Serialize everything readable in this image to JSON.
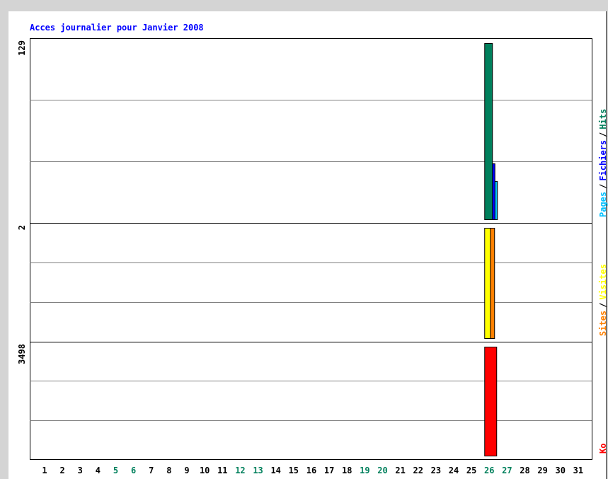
{
  "chart_data": {
    "type": "bar",
    "title": "Acces journalier pour Janvier 2008",
    "categories": [
      "1",
      "2",
      "3",
      "4",
      "5",
      "6",
      "7",
      "8",
      "9",
      "10",
      "11",
      "12",
      "13",
      "14",
      "15",
      "16",
      "17",
      "18",
      "19",
      "20",
      "21",
      "22",
      "23",
      "24",
      "25",
      "26",
      "27",
      "28",
      "29",
      "30",
      "31"
    ],
    "category_colors": [
      "#000000",
      "#000000",
      "#000000",
      "#000000",
      "#00805c",
      "#00805c",
      "#000000",
      "#000000",
      "#000000",
      "#000000",
      "#000000",
      "#00805c",
      "#00805c",
      "#000000",
      "#000000",
      "#000000",
      "#000000",
      "#000000",
      "#00805c",
      "#00805c",
      "#000000",
      "#000000",
      "#000000",
      "#000000",
      "#000000",
      "#00805c",
      "#00805c",
      "#000000",
      "#000000",
      "#000000",
      "#000000"
    ],
    "legend_separator": "/",
    "panels": [
      {
        "ylim": [
          0,
          129
        ],
        "yticks": [
          129
        ],
        "series": [
          {
            "name": "Pages",
            "color": "#00c0ff",
            "values": [
              0,
              0,
              0,
              0,
              0,
              0,
              0,
              0,
              0,
              0,
              0,
              0,
              0,
              0,
              0,
              0,
              0,
              0,
              0,
              0,
              0,
              0,
              0,
              0,
              0,
              28,
              0,
              0,
              0,
              0,
              0
            ]
          },
          {
            "name": "Fichiers",
            "color": "#0000ff",
            "values": [
              0,
              0,
              0,
              0,
              0,
              0,
              0,
              0,
              0,
              0,
              0,
              0,
              0,
              0,
              0,
              0,
              0,
              0,
              0,
              0,
              0,
              0,
              0,
              0,
              0,
              41,
              0,
              0,
              0,
              0,
              0
            ]
          },
          {
            "name": "Hits",
            "color": "#00805c",
            "values": [
              0,
              0,
              0,
              0,
              0,
              0,
              0,
              0,
              0,
              0,
              0,
              0,
              0,
              0,
              0,
              0,
              0,
              0,
              0,
              0,
              0,
              0,
              0,
              0,
              0,
              129,
              0,
              0,
              0,
              0,
              0
            ]
          }
        ]
      },
      {
        "ylim": [
          0,
          2
        ],
        "yticks": [
          2
        ],
        "series": [
          {
            "name": "Sites",
            "color": "#ff8000",
            "values": [
              0,
              0,
              0,
              0,
              0,
              0,
              0,
              0,
              0,
              0,
              0,
              0,
              0,
              0,
              0,
              0,
              0,
              0,
              0,
              0,
              0,
              0,
              0,
              0,
              0,
              2,
              0,
              0,
              0,
              0,
              0
            ]
          },
          {
            "name": "Visites",
            "color": "#ffff00",
            "values": [
              0,
              0,
              0,
              0,
              0,
              0,
              0,
              0,
              0,
              0,
              0,
              0,
              0,
              0,
              0,
              0,
              0,
              0,
              0,
              0,
              0,
              0,
              0,
              0,
              0,
              2,
              0,
              0,
              0,
              0,
              0
            ]
          }
        ]
      },
      {
        "ylim": [
          0,
          3498
        ],
        "yticks": [
          3498
        ],
        "series": [
          {
            "name": "Ko",
            "color": "#ff0000",
            "values": [
              0,
              0,
              0,
              0,
              0,
              0,
              0,
              0,
              0,
              0,
              0,
              0,
              0,
              0,
              0,
              0,
              0,
              0,
              0,
              0,
              0,
              0,
              0,
              0,
              0,
              3498,
              0,
              0,
              0,
              0,
              0
            ]
          }
        ]
      }
    ]
  }
}
